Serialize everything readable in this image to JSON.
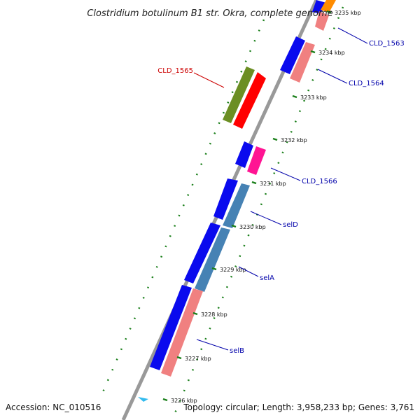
{
  "title": "Clostridium botulinum B1 str. Okra, complete genome",
  "footer": {
    "accession": "Accession: NC_010516",
    "topology": "Topology: circular; Length: 3,958,233 bp; Genes: 3,761"
  },
  "colors": {
    "backbone": "#999999",
    "tick": "#1a7f1a",
    "gene_blue": "#0a0aee",
    "gene_salmon": "#f08080",
    "gene_steel": "#4682b4",
    "gene_olive": "#6b8e23",
    "gene_red": "#ff0000",
    "gene_pink": "#ff1493",
    "gene_orange": "#ff8c00",
    "label_blue": "#0000aa",
    "label_red": "#cc0000",
    "marker": "#33bbee"
  },
  "ticks": [
    {
      "label": "3235 kbp"
    },
    {
      "label": "3234 kbp"
    },
    {
      "label": "3233 kbp"
    },
    {
      "label": "3232 kbp"
    },
    {
      "label": "3231 kbp"
    },
    {
      "label": "3230 kbp"
    },
    {
      "label": "3229 kbp"
    },
    {
      "label": "3228 kbp"
    },
    {
      "label": "3227 kbp"
    },
    {
      "label": "3226 kbp"
    }
  ],
  "genes": [
    {
      "label": "CLD_1563",
      "color": "label_blue"
    },
    {
      "label": "CLD_1564",
      "color": "label_blue"
    },
    {
      "label": "CLD_1565",
      "color": "label_red"
    },
    {
      "label": "CLD_1566",
      "color": "label_blue"
    },
    {
      "label": "selD",
      "color": "label_blue"
    },
    {
      "label": "selA",
      "color": "label_blue"
    },
    {
      "label": "selB",
      "color": "label_blue"
    }
  ]
}
